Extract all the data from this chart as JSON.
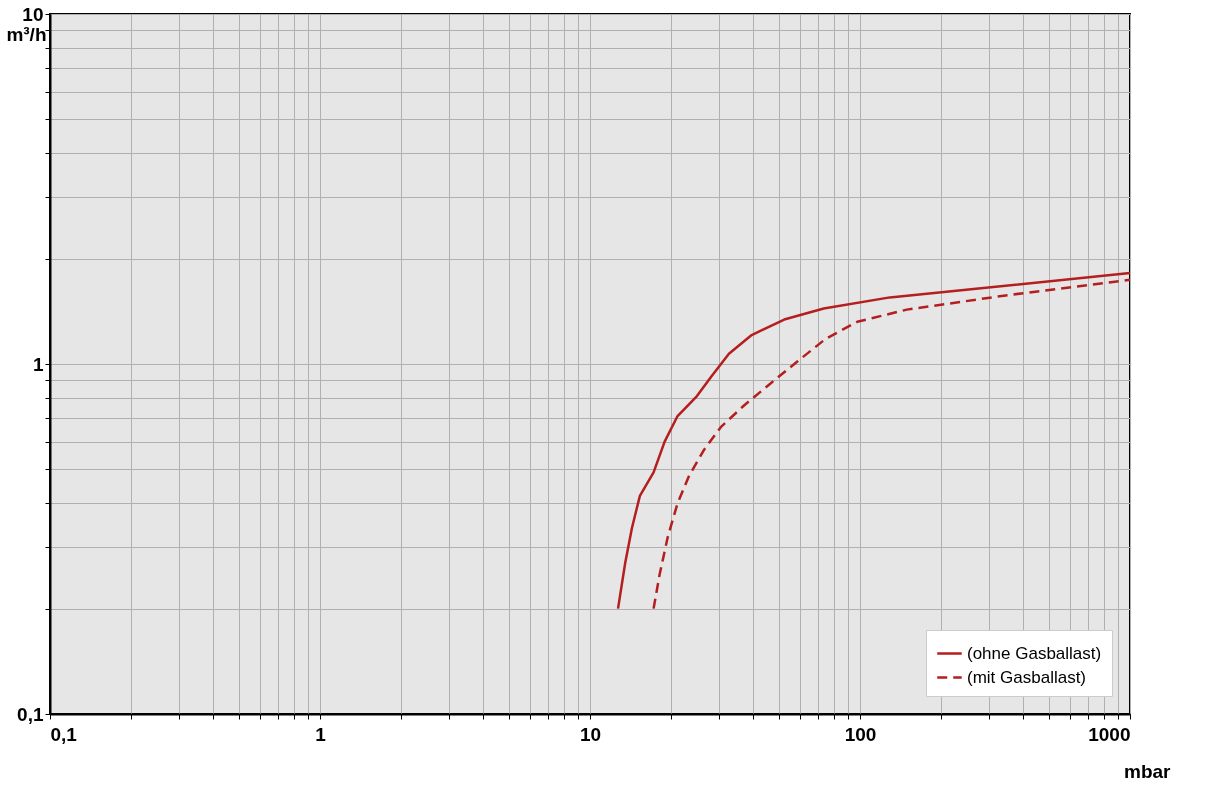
{
  "chart_data": {
    "type": "line",
    "xlabel": "mbar",
    "ylabel": "m³/h",
    "log": "xy",
    "grid": true,
    "legend": "bottom right",
    "xlim": [
      0.1,
      1000
    ],
    "ylim": [
      0.1,
      10
    ],
    "xticks": [
      {
        "value": 0.1,
        "label": "0,1"
      },
      {
        "value": 0.2,
        "label": null
      },
      {
        "value": 0.3,
        "label": null
      },
      {
        "value": 0.4,
        "label": null
      },
      {
        "value": 0.5,
        "label": null
      },
      {
        "value": 0.6,
        "label": null
      },
      {
        "value": 0.7,
        "label": null
      },
      {
        "value": 0.8,
        "label": null
      },
      {
        "value": 0.9,
        "label": null
      },
      1,
      {
        "value": 2,
        "label": null
      },
      {
        "value": 3,
        "label": null
      },
      {
        "value": 4,
        "label": null
      },
      {
        "value": 5,
        "label": null
      },
      {
        "value": 6,
        "label": null
      },
      {
        "value": 7,
        "label": null
      },
      {
        "value": 8,
        "label": null
      },
      {
        "value": 9,
        "label": null
      },
      10,
      {
        "value": 20,
        "label": null
      },
      {
        "value": 30,
        "label": null
      },
      {
        "value": 40,
        "label": null
      },
      {
        "value": 50,
        "label": null
      },
      {
        "value": 60,
        "label": null
      },
      {
        "value": 70,
        "label": null
      },
      {
        "value": 80,
        "label": null
      },
      {
        "value": 90,
        "label": null
      },
      100,
      {
        "value": 200,
        "label": null
      },
      {
        "value": 300,
        "label": null
      },
      {
        "value": 400,
        "label": null
      },
      {
        "value": 500,
        "label": null
      },
      {
        "value": 600,
        "label": null
      },
      {
        "value": 700,
        "label": null
      },
      {
        "value": 800,
        "label": null
      },
      {
        "value": 900,
        "label": null
      },
      1000
    ],
    "yticks": [
      {
        "value": 0.1,
        "label": "0,1"
      },
      {
        "value": 0.2,
        "label": null
      },
      {
        "value": 0.3,
        "label": null
      },
      {
        "value": 0.4,
        "label": null
      },
      {
        "value": 0.5,
        "label": null
      },
      {
        "value": 0.6,
        "label": null
      },
      {
        "value": 0.7,
        "label": null
      },
      {
        "value": 0.8,
        "label": null
      },
      {
        "value": 0.9,
        "label": null
      },
      1,
      {
        "value": 2,
        "label": null
      },
      {
        "value": 3,
        "label": null
      },
      {
        "value": 4,
        "label": null
      },
      {
        "value": 5,
        "label": null
      },
      {
        "value": 6,
        "label": null
      },
      {
        "value": 7,
        "label": null
      },
      {
        "value": 8,
        "label": null
      },
      {
        "value": 9,
        "label": null
      },
      10
    ],
    "series": [
      {
        "name": "(ohne Gasballast)",
        "color": "#b51e1e",
        "line_style": "solid",
        "x": [
          12.7,
          13.5,
          14.3,
          15.3,
          17.2,
          18.9,
          21.1,
          24.9,
          28.1,
          32.7,
          39.7,
          52.4,
          73.4,
          129,
          269,
          1000
        ],
        "values": [
          0.2,
          0.27,
          0.34,
          0.42,
          0.49,
          0.6,
          0.71,
          0.81,
          0.92,
          1.07,
          1.21,
          1.34,
          1.44,
          1.55,
          1.64,
          1.82
        ]
      },
      {
        "name": "(mit Gasballast)",
        "color": "#b51e1e",
        "line_style": "dashed",
        "x": [
          17.2,
          18.1,
          19.4,
          21.1,
          23.3,
          26.5,
          30.5,
          37.1,
          45.8,
          58.9,
          74.6,
          97.7,
          149,
          346,
          1000
        ],
        "values": [
          0.2,
          0.25,
          0.32,
          0.4,
          0.48,
          0.57,
          0.66,
          0.76,
          0.87,
          1.02,
          1.18,
          1.32,
          1.43,
          1.57,
          1.74
        ]
      }
    ]
  }
}
